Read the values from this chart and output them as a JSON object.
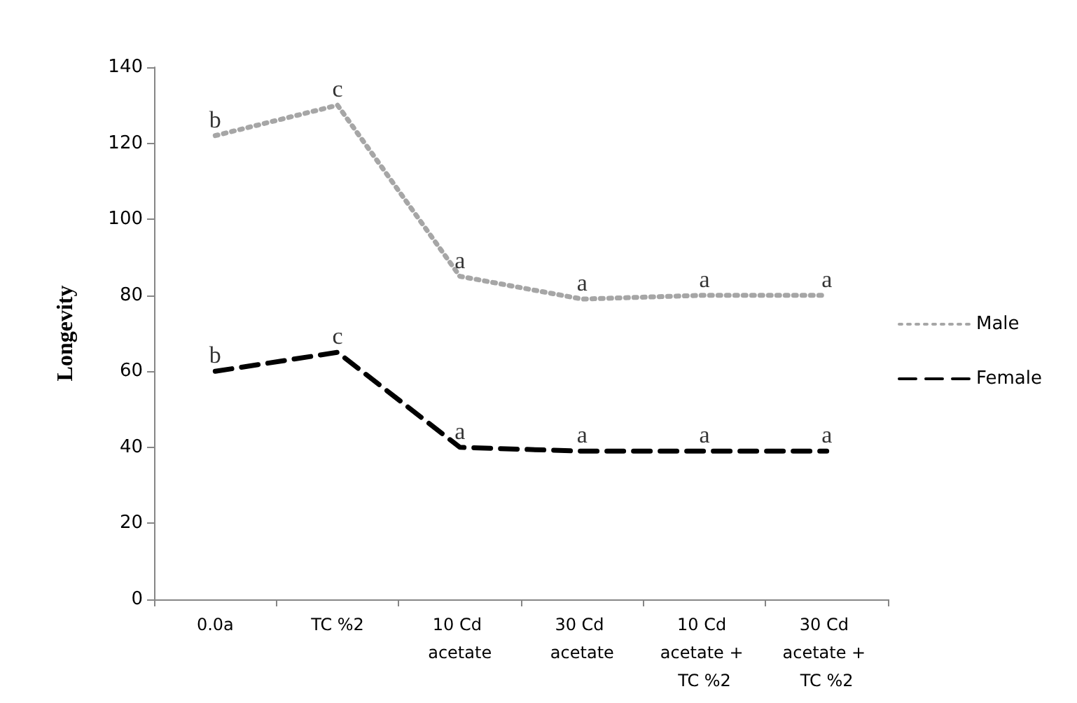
{
  "chart_data": {
    "type": "line",
    "ylabel": "Longevity",
    "categories": [
      "0.0a",
      "TC %2",
      "10 Cd acetate",
      "30 Cd acetate",
      "10 Cd acetate + TC %2",
      "30 Cd acetate + TC %2"
    ],
    "series": [
      {
        "name": "Male",
        "color": "#a6a6a6",
        "line_style": "dotted",
        "values": [
          122,
          130,
          85,
          79,
          80,
          80
        ]
      },
      {
        "name": "Female",
        "color": "#000000",
        "line_style": "dashed",
        "values": [
          60,
          65,
          40,
          39,
          39,
          39
        ]
      }
    ],
    "ylim": [
      0,
      140
    ],
    "yticks": [
      0,
      20,
      40,
      60,
      80,
      100,
      120,
      140
    ],
    "grid": false,
    "legend": "right",
    "marker": "none",
    "annotations": [
      {
        "text": "b",
        "x": "0.0a",
        "y": 122
      },
      {
        "text": "c",
        "x": "TC %2",
        "y": 130
      },
      {
        "text": "a",
        "x": "10 Cd acetate",
        "y": 85
      },
      {
        "text": "a",
        "x": "30 Cd acetate",
        "y": 79
      },
      {
        "text": "a",
        "x": "10 Cd acetate + TC %2",
        "y": 80
      },
      {
        "text": "a",
        "x": "30 Cd acetate + TC %2",
        "y": 80
      },
      {
        "text": "b",
        "x": "0.0a",
        "y": 60
      },
      {
        "text": "c",
        "x": "TC %2",
        "y": 65
      },
      {
        "text": "a",
        "x": "10 Cd acetate",
        "y": 40
      },
      {
        "text": "a",
        "x": "30 Cd acetate",
        "y": 39
      },
      {
        "text": "a",
        "x": "10 Cd acetate + TC %2",
        "y": 39
      },
      {
        "text": "a",
        "x": "30 Cd acetate + TC %2",
        "y": 39
      }
    ]
  }
}
